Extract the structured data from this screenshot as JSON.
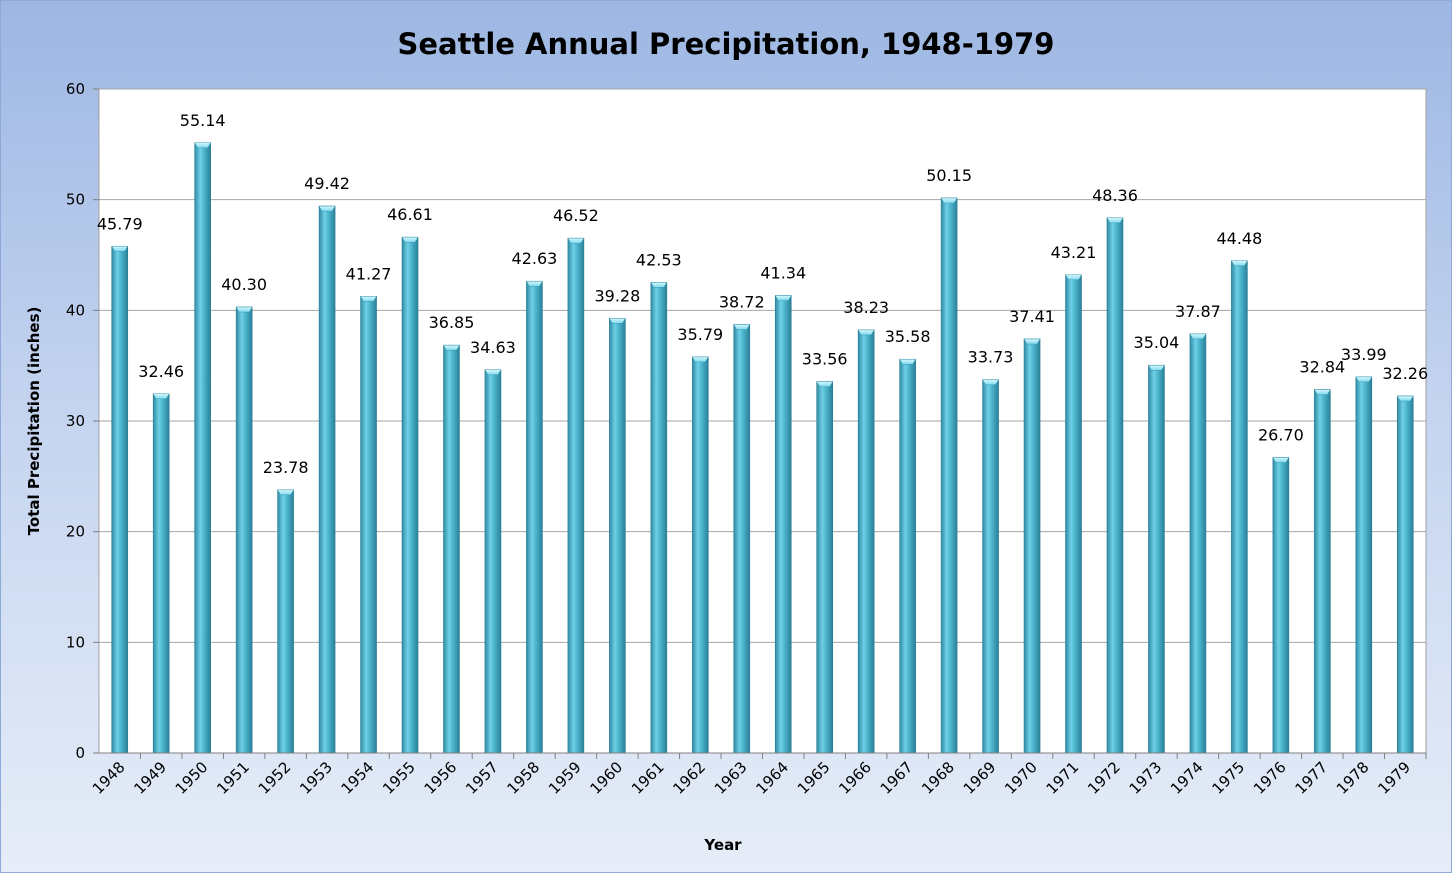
{
  "chart_data": {
    "type": "bar",
    "title": "Seattle Annual Precipitation, 1948-1979",
    "xlabel": "Year",
    "ylabel": "Total Precipitation (inches)",
    "ylim": [
      0,
      60
    ],
    "yticks": [
      "0",
      "10",
      "20",
      "30",
      "40",
      "50",
      "60"
    ],
    "grid": true,
    "legend": "none",
    "bar_color": "#4bacc6",
    "categories": [
      "1948",
      "1949",
      "1950",
      "1951",
      "1952",
      "1953",
      "1954",
      "1955",
      "1956",
      "1957",
      "1958",
      "1959",
      "1960",
      "1961",
      "1962",
      "1963",
      "1964",
      "1965",
      "1966",
      "1967",
      "1968",
      "1969",
      "1970",
      "1971",
      "1972",
      "1973",
      "1974",
      "1975",
      "1976",
      "1977",
      "1978",
      "1979"
    ],
    "values": [
      45.79,
      32.46,
      55.14,
      40.3,
      23.78,
      49.42,
      41.27,
      46.61,
      36.85,
      34.63,
      42.63,
      46.52,
      39.28,
      42.53,
      35.79,
      38.72,
      41.34,
      33.56,
      38.23,
      35.58,
      50.15,
      33.73,
      37.41,
      43.21,
      48.36,
      35.04,
      37.87,
      44.48,
      26.7,
      32.84,
      33.99,
      32.26
    ],
    "data_labels": [
      "45.79",
      "32.46",
      "55.14",
      "40.30",
      "23.78",
      "49.42",
      "41.27",
      "46.61",
      "36.85",
      "34.63",
      "42.63",
      "46.52",
      "39.28",
      "42.53",
      "35.79",
      "38.72",
      "41.34",
      "33.56",
      "38.23",
      "35.58",
      "50.15",
      "33.73",
      "37.41",
      "43.21",
      "48.36",
      "35.04",
      "37.87",
      "44.48",
      "26.70",
      "32.84",
      "33.99",
      "32.26"
    ]
  }
}
